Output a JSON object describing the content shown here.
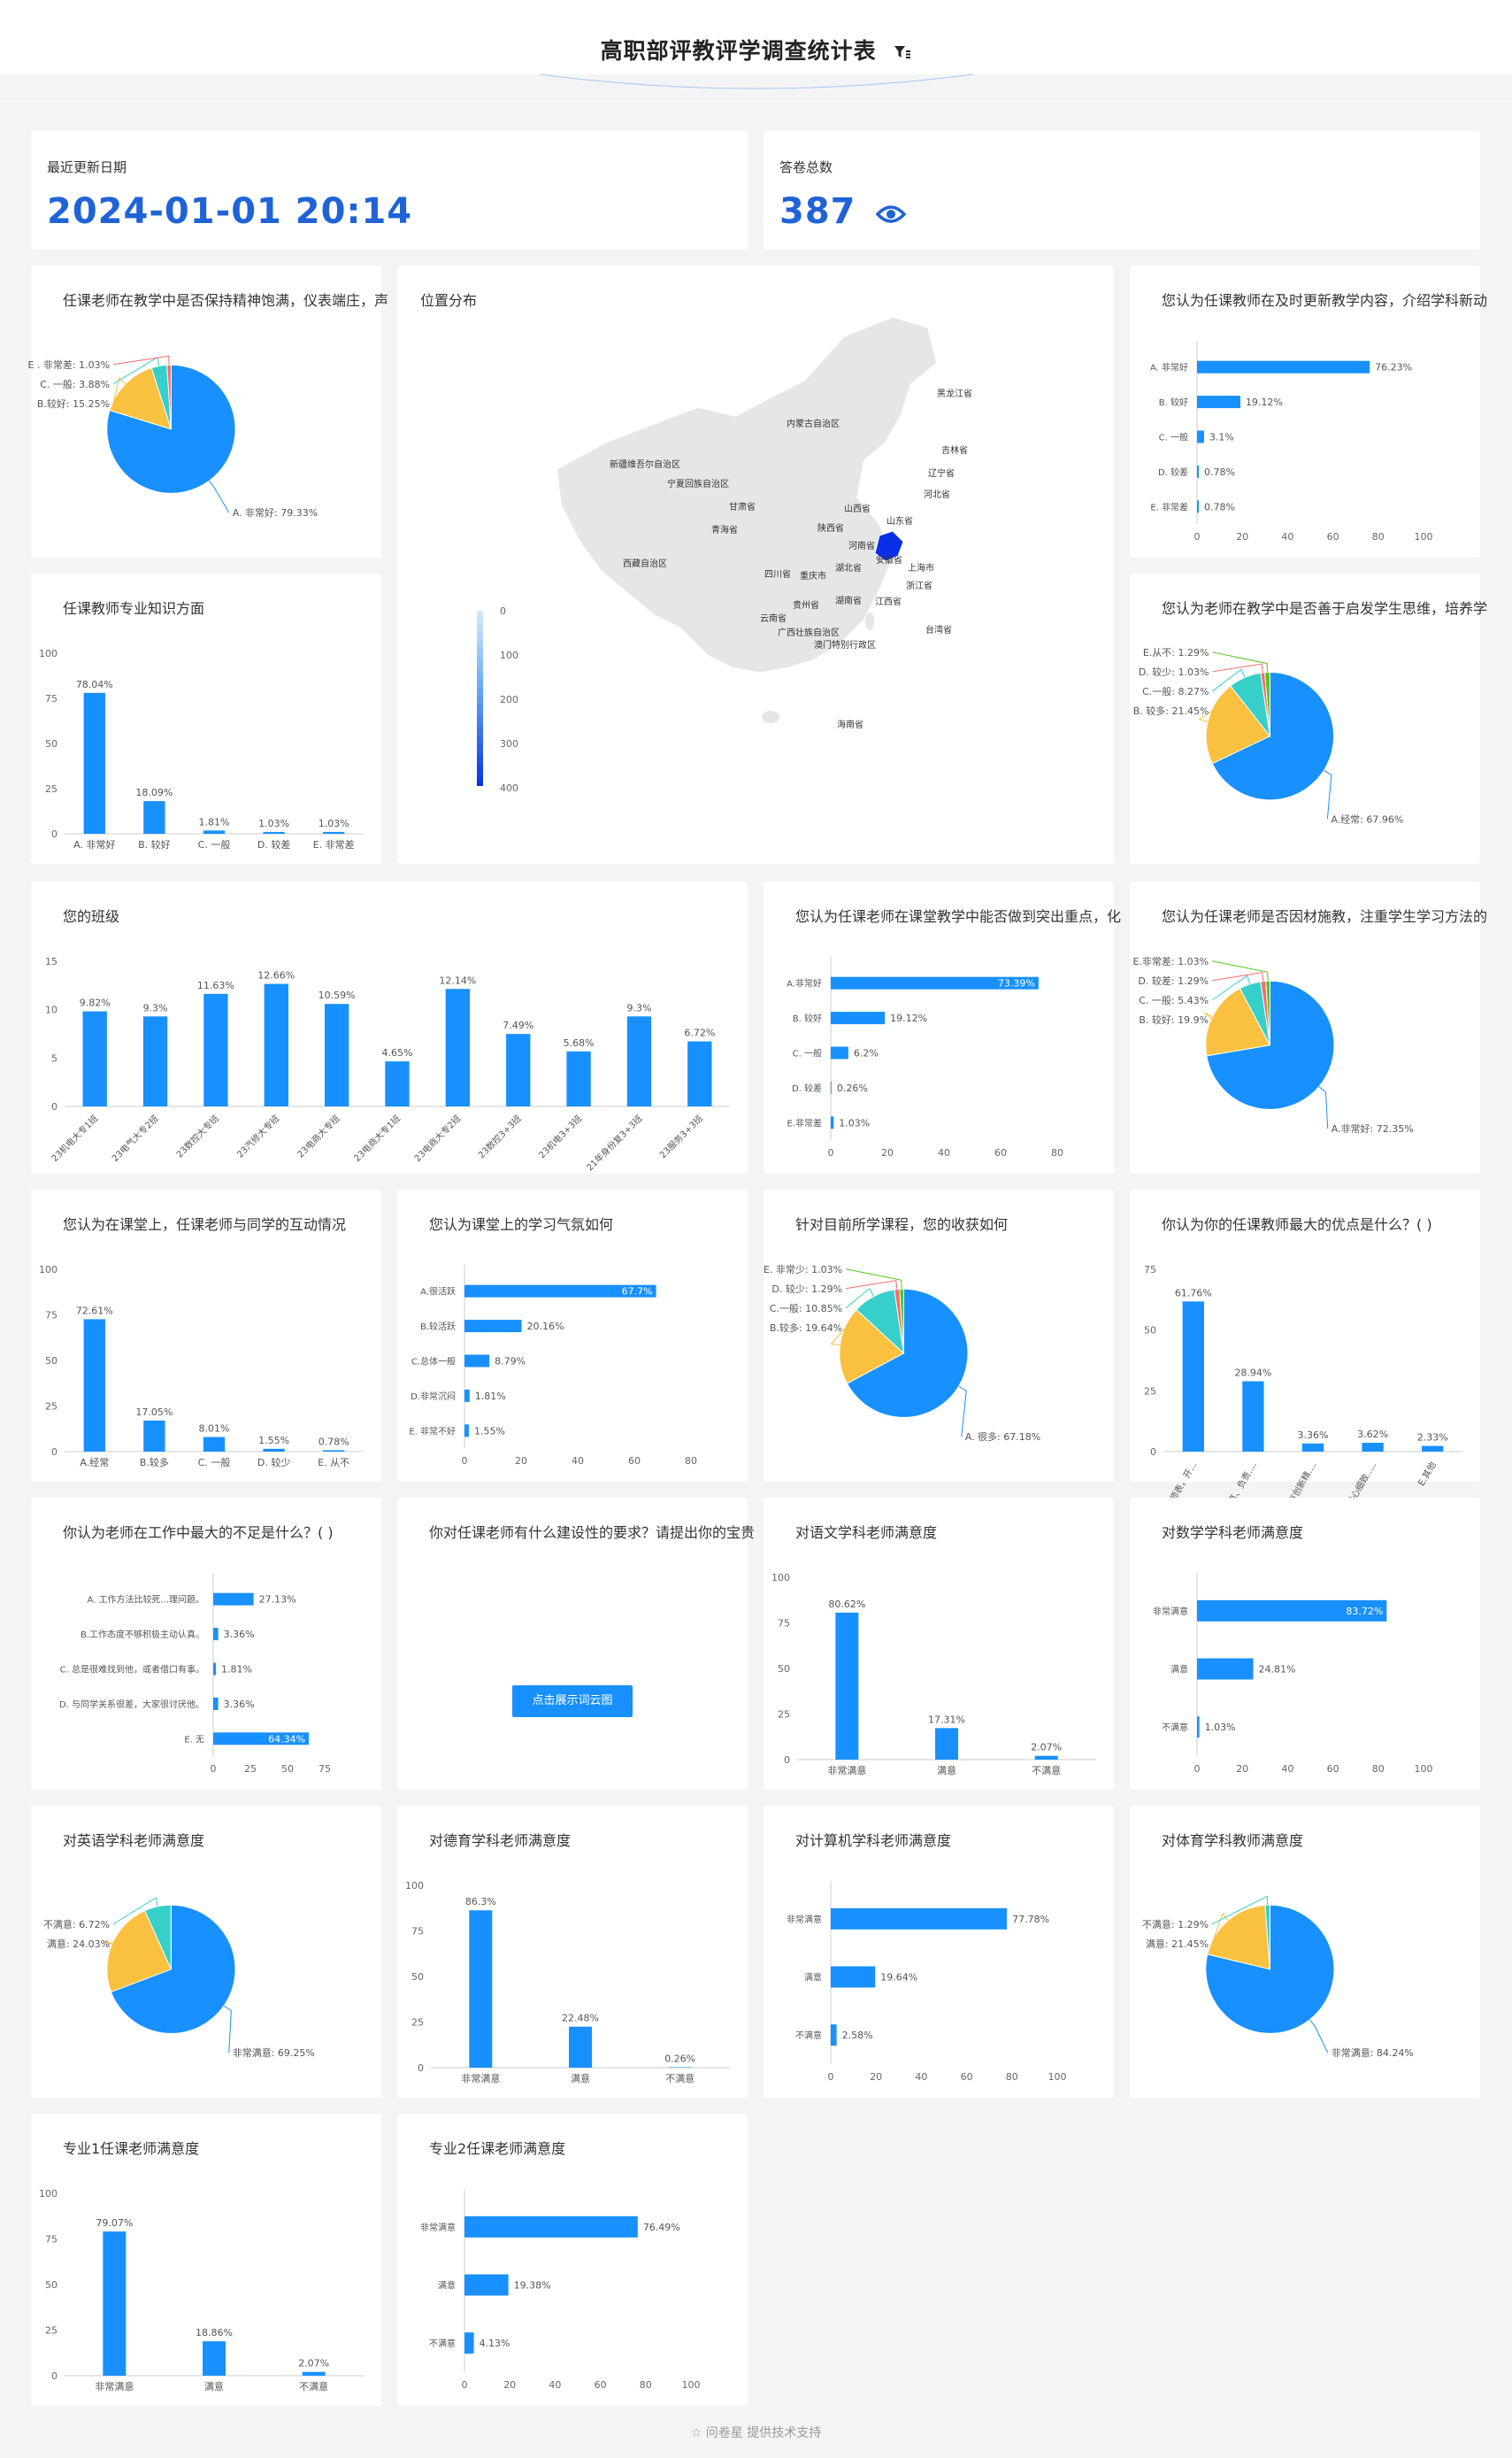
{
  "header": {
    "title": "高职部评教评学调查统计表"
  },
  "stats": {
    "update_label": "最近更新日期",
    "update_value": "2024-01-01 20:14",
    "total_label": "答卷总数",
    "total_value": "387"
  },
  "map": {
    "title": "位置分布",
    "legend_ticks": [
      "0",
      "100",
      "200",
      "300",
      "400"
    ],
    "provinces": [
      "黑龙江省",
      "吉林省",
      "辽宁省",
      "内蒙古自治区",
      "新疆维吾尔自治区",
      "甘肃省",
      "青海省",
      "宁夏回族自治区",
      "河北省",
      "山西省",
      "陕西省",
      "山东省",
      "河南省",
      "安徽省",
      "上海市",
      "浙江省",
      "湖北省",
      "四川省",
      "重庆市",
      "西藏自治区",
      "贵州省",
      "湖南省",
      "江西省",
      "云南省",
      "广西壮族自治区",
      "澳门特别行政区",
      "台湾省",
      "海南省"
    ]
  },
  "wordcloud": {
    "title": "你对任课老师有什么建设性的要求？请提出你的宝贵",
    "button_label": "点击展示词云图"
  },
  "footer": {
    "text": "问卷星 提供技术支持"
  },
  "chart_data": [
    {
      "id": "c1",
      "type": "pie",
      "title": "任课老师在教学中是否保持精神饱满，仪表端庄，声",
      "labels": [
        "A. 非常好",
        "B.较好",
        "C. 一般",
        "E . 非常差"
      ],
      "values": [
        79.33,
        15.25,
        3.88,
        1.03
      ],
      "display": [
        "A. 非常好: 79.33%",
        "B.较好: 15.25%",
        "C. 一般: 3.88%",
        "E . 非常差: 1.03%"
      ],
      "colors": [
        "#1890ff",
        "#fac141",
        "#36cfc9",
        "#f56c6c"
      ]
    },
    {
      "id": "c2",
      "type": "hbar",
      "title": "您认为任课教师在及时更新教学内容，介绍学科新动",
      "categories": [
        "A. 非常好",
        "B. 较好",
        "C. 一般",
        "D. 较差",
        "E. 非常差"
      ],
      "values": [
        76.23,
        19.12,
        3.1,
        0.78,
        0.78
      ],
      "display": [
        "76.23%",
        "19.12%",
        "3.1%",
        "0.78%",
        "0.78%"
      ],
      "xlim": [
        0,
        100
      ],
      "ticks": [
        "0",
        "20",
        "40",
        "60",
        "80",
        "100"
      ]
    },
    {
      "id": "c3",
      "type": "bar",
      "title": "任课教师专业知识方面",
      "categories": [
        "A. 非常好",
        "B. 较好",
        "C. 一般",
        "D. 较差",
        "E. 非常差"
      ],
      "values": [
        78.04,
        18.09,
        1.81,
        1.03,
        1.03
      ],
      "display": [
        "78.04%",
        "18.09%",
        "1.81%",
        "1.03%",
        "1.03%"
      ],
      "ylim": [
        0,
        100
      ],
      "ticks": [
        "0",
        "25",
        "50",
        "75",
        "100"
      ]
    },
    {
      "id": "c4",
      "type": "pie",
      "title": "您认为老师在教学中是否善于启发学生思维，培养学",
      "labels": [
        "A.经常",
        "B. 较多",
        "C.一般",
        "D. 较少",
        "E.从不"
      ],
      "values": [
        67.96,
        21.45,
        8.27,
        1.03,
        1.29
      ],
      "display": [
        "A.经常: 67.96%",
        "B. 较多: 21.45%",
        "C.一般: 8.27%",
        "D. 较少: 1.03%",
        "E.从不: 1.29%"
      ],
      "colors": [
        "#1890ff",
        "#fac141",
        "#36cfc9",
        "#f56c6c",
        "#52c41a"
      ]
    },
    {
      "id": "c5",
      "type": "bar",
      "title": "您的班级",
      "categories": [
        "23机电大专1班",
        "23电气大专2班",
        "23数控大专班",
        "23汽修大专班",
        "23电商大专班",
        "23电商大专1班",
        "23电商大专2班",
        "23数控3+3班",
        "23机电3+3班",
        "21年身份复3+3班",
        "23服务3+3班"
      ],
      "values": [
        9.82,
        9.3,
        11.63,
        12.66,
        10.59,
        4.65,
        12.14,
        7.49,
        5.68,
        9.3,
        6.72
      ],
      "display": [
        "9.82%",
        "9.3%",
        "11.63%",
        "12.66%",
        "10.59%",
        "4.65%",
        "12.14%",
        "7.49%",
        "5.68%",
        "9.3%",
        "6.72%"
      ],
      "ylim": [
        0,
        15
      ],
      "ticks": [
        "0",
        "5",
        "10",
        "15"
      ]
    },
    {
      "id": "c6",
      "type": "hbar",
      "title": "您认为任课老师在课堂教学中能否做到突出重点，化",
      "categories": [
        "A.非常好",
        "B. 较好",
        "C. 一般",
        "D. 较差",
        "E.非常差"
      ],
      "values": [
        73.39,
        19.12,
        6.2,
        0.26,
        1.03
      ],
      "display": [
        "73.39%",
        "19.12%",
        "6.2%",
        "0.26%",
        "1.03%"
      ],
      "xlim": [
        0,
        80
      ],
      "ticks": [
        "0",
        "20",
        "40",
        "60",
        "80"
      ]
    },
    {
      "id": "c7",
      "type": "pie",
      "title": "您认为任课老师是否因材施教，注重学生学习方法的",
      "labels": [
        "A.非常好",
        "B. 较好",
        "C. 一般",
        "D. 较差",
        "E.非常差"
      ],
      "values": [
        72.35,
        19.9,
        5.43,
        1.29,
        1.03
      ],
      "display": [
        "A.非常好: 72.35%",
        "B. 较好: 19.9%",
        "C. 一般: 5.43%",
        "D. 较差: 1.29%",
        "E.非常差: 1.03%"
      ],
      "colors": [
        "#1890ff",
        "#fac141",
        "#36cfc9",
        "#f56c6c",
        "#52c41a"
      ]
    },
    {
      "id": "c8",
      "type": "bar",
      "title": "您认为在课堂上，任课老师与同学的互动情况",
      "categories": [
        "A.经常",
        "B.较多",
        "C. 一般",
        "D. 较少",
        "E. 从不"
      ],
      "values": [
        72.61,
        17.05,
        8.01,
        1.55,
        0.78
      ],
      "display": [
        "72.61%",
        "17.05%",
        "8.01%",
        "1.55%",
        "0.78%"
      ],
      "ylim": [
        0,
        100
      ],
      "ticks": [
        "0",
        "25",
        "50",
        "75",
        "100"
      ]
    },
    {
      "id": "c9",
      "type": "hbar",
      "title": "您认为课堂上的学习气氛如何",
      "categories": [
        "A.很活跃",
        "B.较活跃",
        "C.总体一般",
        "D.非常沉闷",
        "E. 非常不好"
      ],
      "values": [
        67.7,
        20.16,
        8.79,
        1.81,
        1.55
      ],
      "display": [
        "67.7%",
        "20.16%",
        "8.79%",
        "1.81%",
        "1.55%"
      ],
      "xlim": [
        0,
        80
      ],
      "ticks": [
        "0",
        "20",
        "40",
        "60",
        "80"
      ]
    },
    {
      "id": "c10",
      "type": "pie",
      "title": "针对目前所学课程，您的收获如何",
      "labels": [
        "A. 很多",
        "B.较多",
        "C.一般",
        "D. 较少",
        "E. 非常少"
      ],
      "values": [
        67.18,
        19.64,
        10.85,
        1.29,
        1.03
      ],
      "display": [
        "A. 很多: 67.18%",
        "B.较多: 19.64%",
        "C.一般: 10.85%",
        "D. 较少: 1.29%",
        "E. 非常少: 1.03%"
      ],
      "colors": [
        "#1890ff",
        "#fac141",
        "#36cfc9",
        "#f56c6c",
        "#52c41a"
      ]
    },
    {
      "id": "c11",
      "type": "bar",
      "title": "你认为你的任课教师最大的优点是什么？(      )",
      "categories": [
        "A.为人师表，开...",
        "B.认真、负责...",
        "C.富有创新精...",
        "D.耐心细致...",
        "E.其他"
      ],
      "values": [
        61.76,
        28.94,
        3.36,
        3.62,
        2.33
      ],
      "display": [
        "61.76%",
        "28.94%",
        "3.36%",
        "3.62%",
        "2.33%"
      ],
      "ylim": [
        0,
        75
      ],
      "ticks": [
        "0",
        "25",
        "50",
        "75"
      ]
    },
    {
      "id": "c12",
      "type": "hbar",
      "title": "你认为老师在工作中最大的不足是什么？(      )",
      "categories": [
        "A. 工作方法比较死...理问题。",
        "B.工作态度不够积极主动认真。",
        "C. 总是很难找到他，或者借口有事。",
        "D. 与同学关系很差，大家很讨厌他。",
        "E. 无"
      ],
      "values": [
        27.13,
        3.36,
        1.81,
        3.36,
        64.34
      ],
      "display": [
        "27.13%",
        "3.36%",
        "1.81%",
        "3.36%",
        "64.34%"
      ],
      "xlim": [
        0,
        75
      ],
      "ticks": [
        "0",
        "25",
        "50",
        "75"
      ]
    },
    {
      "id": "c13",
      "type": "bar",
      "title": "对语文学科老师满意度",
      "categories": [
        "非常满意",
        "满意",
        "不满意"
      ],
      "values": [
        80.62,
        17.31,
        2.07
      ],
      "display": [
        "80.62%",
        "17.31%",
        "2.07%"
      ],
      "ylim": [
        0,
        100
      ],
      "ticks": [
        "0",
        "25",
        "50",
        "75",
        "100"
      ]
    },
    {
      "id": "c14",
      "type": "hbar",
      "title": "对数学学科老师满意度",
      "categories": [
        "非常满意",
        "满意",
        "不满意"
      ],
      "values": [
        83.72,
        24.81,
        1.03
      ],
      "display": [
        "83.72%",
        "24.81%",
        "1.03%"
      ],
      "xlim": [
        0,
        100
      ],
      "ticks": [
        "0",
        "20",
        "40",
        "60",
        "80",
        "100"
      ]
    },
    {
      "id": "c15",
      "type": "pie",
      "title": "对英语学科老师满意度",
      "labels": [
        "非常满意",
        "满意",
        "不满意"
      ],
      "values": [
        69.25,
        24.03,
        6.72
      ],
      "display": [
        "非常满意: 69.25%",
        "满意: 24.03%",
        "不满意: 6.72%"
      ],
      "colors": [
        "#1890ff",
        "#fac141",
        "#36cfc9"
      ]
    },
    {
      "id": "c16",
      "type": "bar",
      "title": "对德育学科老师满意度",
      "categories": [
        "非常满意",
        "满意",
        "不满意"
      ],
      "values": [
        86.3,
        22.48,
        0.26
      ],
      "display": [
        "86.3%",
        "22.48%",
        "0.26%"
      ],
      "ylim": [
        0,
        100
      ],
      "ticks": [
        "0",
        "25",
        "50",
        "75",
        "100"
      ]
    },
    {
      "id": "c17",
      "type": "hbar",
      "title": "对计算机学科老师满意度",
      "categories": [
        "非常满意",
        "满意",
        "不满意"
      ],
      "values": [
        77.78,
        19.64,
        2.58
      ],
      "display": [
        "77.78%",
        "19.64%",
        "2.58%"
      ],
      "xlim": [
        0,
        100
      ],
      "ticks": [
        "0",
        "20",
        "40",
        "60",
        "80",
        "100"
      ]
    },
    {
      "id": "c18",
      "type": "pie",
      "title": "对体育学科教师满意度",
      "labels": [
        "非常满意",
        "满意",
        "不满意"
      ],
      "values": [
        84.24,
        21.45,
        1.29
      ],
      "display": [
        "非常满意: 84.24%",
        "满意: 21.45%",
        "不满意: 1.29%"
      ],
      "colors": [
        "#1890ff",
        "#fac141",
        "#36cfc9"
      ]
    },
    {
      "id": "c19",
      "type": "bar",
      "title": "专业1任课老师满意度",
      "categories": [
        "非常满意",
        "满意",
        "不满意"
      ],
      "values": [
        79.07,
        18.86,
        2.07
      ],
      "display": [
        "79.07%",
        "18.86%",
        "2.07%"
      ],
      "ylim": [
        0,
        100
      ],
      "ticks": [
        "0",
        "25",
        "50",
        "75",
        "100"
      ]
    },
    {
      "id": "c20",
      "type": "hbar",
      "title": "专业2任课老师满意度",
      "categories": [
        "非常满意",
        "满意",
        "不满意"
      ],
      "values": [
        76.49,
        19.38,
        4.13
      ],
      "display": [
        "76.49%",
        "19.38%",
        "4.13%"
      ],
      "xlim": [
        0,
        100
      ],
      "ticks": [
        "0",
        "20",
        "40",
        "60",
        "80",
        "100"
      ]
    }
  ]
}
